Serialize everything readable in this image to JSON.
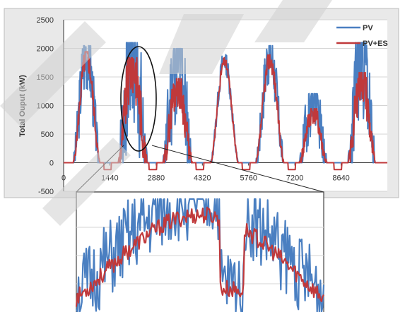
{
  "chart_data": [
    {
      "type": "line",
      "title": "",
      "xlabel": "",
      "ylabel": "Total Ouput (kW)",
      "xlim": [
        0,
        10080
      ],
      "ylim": [
        -500,
        2500
      ],
      "x_ticks": [
        0,
        1440,
        2880,
        4320,
        5760,
        7200,
        8640
      ],
      "y_ticks": [
        -500,
        0,
        500,
        1000,
        1500,
        2000,
        2500
      ],
      "grid": true,
      "legend_position": "top-right",
      "series": [
        {
          "name": "PV",
          "color": "#4a7fc1",
          "days": [
            {
              "start": 300,
              "end": 1130,
              "peak": 1950,
              "noise": 0.35,
              "seed": 3
            },
            {
              "start": 1700,
              "end": 2600,
              "peak": 2000,
              "noise": 0.75,
              "seed": 7
            },
            {
              "start": 3100,
              "end": 4000,
              "peak": 1900,
              "noise": 0.65,
              "seed": 11
            },
            {
              "start": 4580,
              "end": 5440,
              "peak": 1800,
              "noise": 0.12,
              "seed": 13
            },
            {
              "start": 5990,
              "end": 6860,
              "peak": 1950,
              "noise": 0.3,
              "seed": 17
            },
            {
              "start": 7340,
              "end": 8200,
              "peak": 1150,
              "noise": 0.55,
              "seed": 19
            },
            {
              "start": 8860,
              "end": 9700,
              "peak": 2000,
              "noise": 0.6,
              "seed": 23
            }
          ]
        },
        {
          "name": "PV+ES",
          "color": "#c0393b",
          "days": [
            {
              "start": 300,
              "end": 1130,
              "peak": 1850,
              "noise": 0.12,
              "seed": 5
            },
            {
              "start": 1700,
              "end": 2600,
              "peak": 1750,
              "noise": 0.35,
              "seed": 9
            },
            {
              "start": 3100,
              "end": 4000,
              "peak": 1400,
              "noise": 0.3,
              "seed": 29
            },
            {
              "start": 4580,
              "end": 5440,
              "peak": 1760,
              "noise": 0.05,
              "seed": 31
            },
            {
              "start": 5990,
              "end": 6860,
              "peak": 1800,
              "noise": 0.1,
              "seed": 37
            },
            {
              "start": 7340,
              "end": 8200,
              "peak": 900,
              "noise": 0.25,
              "seed": 41
            },
            {
              "start": 8860,
              "end": 9700,
              "peak": 1500,
              "noise": 0.3,
              "seed": 43
            }
          ],
          "dips": [
            {
              "start": 1250,
              "end": 1480,
              "value": -120
            },
            {
              "start": 2660,
              "end": 2900,
              "value": -120
            },
            {
              "start": 4120,
              "end": 4360,
              "value": -120
            },
            {
              "start": 5560,
              "end": 5800,
              "value": -120
            },
            {
              "start": 6990,
              "end": 7220,
              "value": -120
            },
            {
              "start": 8420,
              "end": 8660,
              "value": -120
            }
          ]
        }
      ]
    },
    {
      "type": "line",
      "title": "",
      "xlabel": "",
      "ylabel": "",
      "xlim": [
        1700,
        2600
      ],
      "ylim": [
        0,
        2000
      ],
      "grid": true,
      "zoom_of": "day 2 (circled region)",
      "series": [
        {
          "name": "PV",
          "color": "#4a7fc1",
          "peak": 2000,
          "noise": 0.8,
          "seed": 51
        },
        {
          "name": "PV+ES",
          "color": "#c0393b",
          "peak": 1720,
          "noise": 0.2,
          "seed": 53
        }
      ]
    }
  ]
}
